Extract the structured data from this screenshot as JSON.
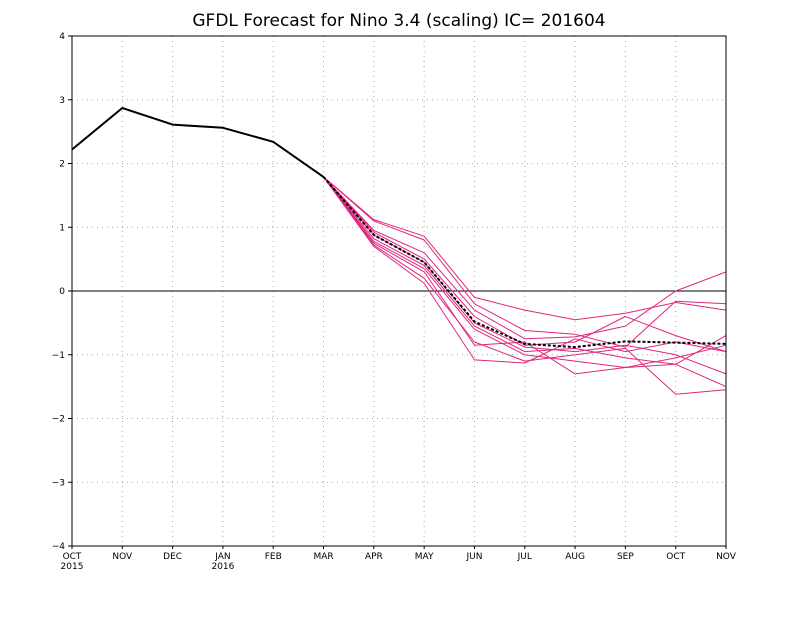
{
  "chart_data": {
    "type": "line",
    "title": "GFDL Forecast for Nino 3.4 (scaling) IC= 201604",
    "xlabel": "",
    "ylabel": "",
    "x_ticks": [
      "OCT",
      "NOV",
      "DEC",
      "JAN",
      "FEB",
      "MAR",
      "APR",
      "MAY",
      "JUN",
      "JUL",
      "AUG",
      "SEP",
      "OCT",
      "NOV"
    ],
    "x_year_labels": [
      {
        "index": 0,
        "label": "2015"
      },
      {
        "index": 3,
        "label": "2016"
      }
    ],
    "y_ticks": [
      "4",
      "3",
      "2",
      "1",
      "0",
      "−1",
      "−2",
      "−3",
      "−4"
    ],
    "ylim": [
      -4,
      4
    ],
    "grid": true,
    "zero_line": true,
    "colors": {
      "observed": "#000000",
      "members": "#e0267f",
      "ensemble_mean": "#000000",
      "grid": "#aaaaaa"
    },
    "observed": {
      "x_index": [
        0,
        1,
        2,
        3,
        4,
        5
      ],
      "values": [
        2.22,
        2.87,
        2.61,
        2.56,
        2.34,
        1.79
      ]
    },
    "ensemble_mean": {
      "x_index": [
        5,
        6,
        7,
        8,
        9,
        10,
        11,
        12,
        13
      ],
      "values": [
        1.79,
        0.88,
        0.45,
        -0.48,
        -0.83,
        -0.88,
        -0.79,
        -0.81,
        -0.83
      ]
    },
    "members": {
      "x_index": [
        5,
        6,
        7,
        8,
        9,
        10,
        11,
        12,
        13
      ],
      "series": [
        [
          1.79,
          1.12,
          0.86,
          -0.1,
          -0.3,
          -0.45,
          -0.35,
          -0.18,
          -0.3
        ],
        [
          1.79,
          1.1,
          0.8,
          -0.2,
          -0.62,
          -0.68,
          -0.88,
          -0.16,
          -0.2
        ],
        [
          1.79,
          0.95,
          0.6,
          -0.3,
          -0.75,
          -0.72,
          -0.55,
          0.0,
          0.3
        ],
        [
          1.79,
          0.92,
          0.5,
          -0.4,
          -0.85,
          -0.8,
          -0.4,
          -0.7,
          -0.95
        ],
        [
          1.79,
          0.88,
          0.45,
          -0.5,
          -0.88,
          -0.95,
          -0.85,
          -1.0,
          -1.3
        ],
        [
          1.79,
          0.82,
          0.4,
          -0.55,
          -0.95,
          -0.9,
          -1.05,
          -1.15,
          -0.7
        ],
        [
          1.79,
          0.78,
          0.35,
          -0.6,
          -1.0,
          -1.1,
          -1.2,
          -1.05,
          -0.85
        ],
        [
          1.79,
          0.75,
          0.3,
          -0.85,
          -0.8,
          -1.3,
          -1.2,
          -1.15,
          -1.5
        ],
        [
          1.79,
          0.72,
          0.2,
          -0.8,
          -1.1,
          -1.0,
          -0.9,
          -1.62,
          -1.55
        ],
        [
          1.79,
          0.7,
          0.12,
          -1.08,
          -1.13,
          -0.75,
          -0.95,
          -0.8,
          -0.95
        ]
      ]
    }
  }
}
